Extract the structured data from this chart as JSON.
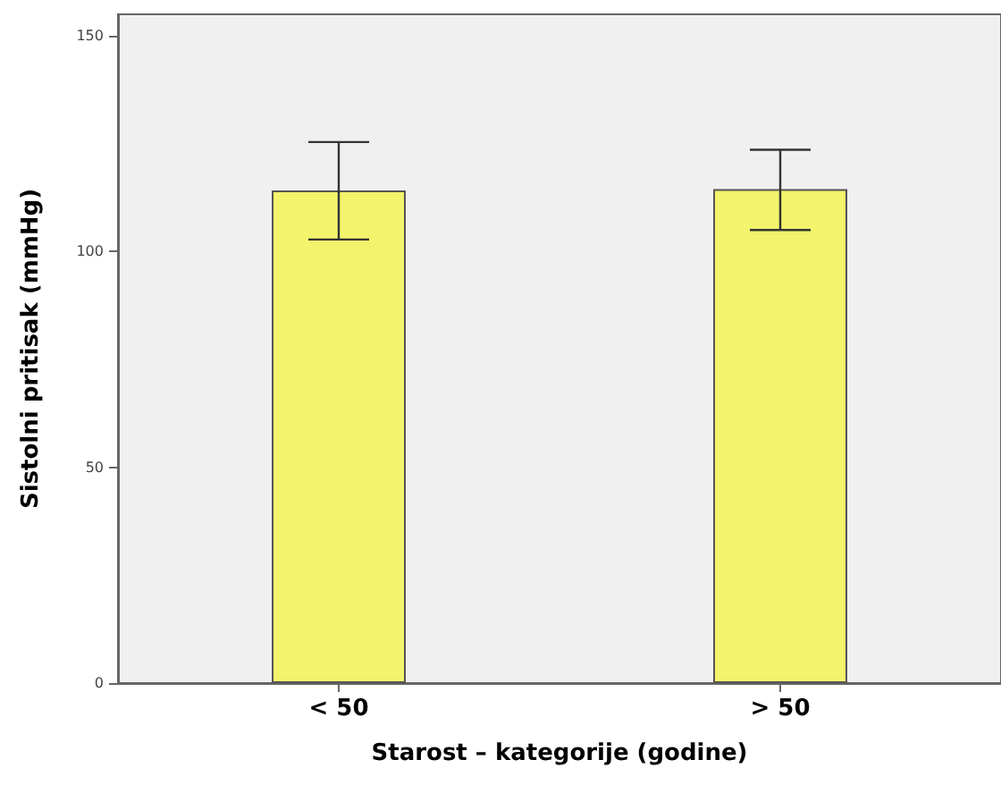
{
  "chart_data": {
    "type": "bar",
    "xlabel": "Starost – kategorije (godine)",
    "ylabel": "Sistolni pritisak (mmHg)",
    "categories": [
      "< 50",
      "> 50"
    ],
    "values": [
      114.2,
      114.5
    ],
    "color": "#f3f36c",
    "errors": [
      [
        102.8,
        125.4
      ],
      [
        105,
        123.6
      ]
    ],
    "ylim": [
      0,
      155
    ],
    "yticks": [
      0,
      50,
      100,
      150
    ],
    "grid": false
  }
}
